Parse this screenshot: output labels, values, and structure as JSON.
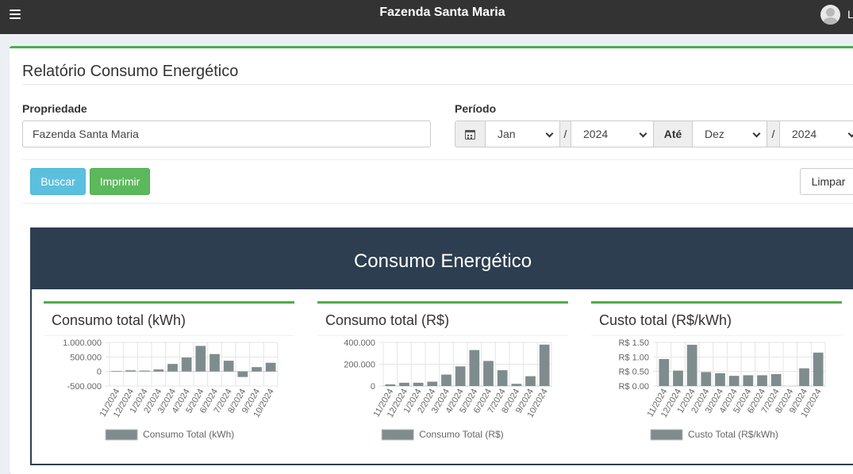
{
  "header": {
    "title": "Fazenda Santa Maria",
    "user_initial": "L"
  },
  "page": {
    "title": "Relatório Consumo Energético"
  },
  "form": {
    "propriedade_label": "Propriedade",
    "propriedade_value": "Fazenda Santa Maria",
    "periodo_label": "Período",
    "mes_inicio": "Jan",
    "ano_inicio": "2024",
    "separador": "/",
    "ate_label": "Até",
    "mes_fim": "Dez",
    "ano_fim": "2024"
  },
  "buttons": {
    "buscar": "Buscar",
    "imprimir": "Imprimir",
    "limpar": "Limpar"
  },
  "report": {
    "title": "Consumo Energético"
  },
  "colors": {
    "bar": "#7f8c8d",
    "accent_green": "#4cae4c",
    "report_header": "#2c3e50"
  },
  "chart_data": [
    {
      "type": "bar",
      "title": "Consumo total (kWh)",
      "categories": [
        "11/2024",
        "12/2024",
        "1/2024",
        "2/2024",
        "3/2024",
        "4/2024",
        "5/2024",
        "6/2024",
        "7/2024",
        "8/2024",
        "9/2024",
        "10/2024"
      ],
      "series": [
        {
          "name": "Consumo Total (kWh)",
          "values": [
            20000,
            40000,
            30000,
            70000,
            260000,
            480000,
            880000,
            600000,
            370000,
            -190000,
            150000,
            300000
          ]
        }
      ],
      "ylim": [
        -500000,
        1000000
      ],
      "yticks": [
        -500000,
        0,
        500000,
        1000000
      ],
      "ytick_labels": [
        "-500.000",
        "0",
        "500.000",
        "1.000.000"
      ],
      "grid": true,
      "legend": "bottom"
    },
    {
      "type": "bar",
      "title": "Consumo total (R$)",
      "categories": [
        "11/2024",
        "12/2024",
        "1/2024",
        "2/2024",
        "3/2024",
        "4/2024",
        "5/2024",
        "6/2024",
        "7/2024",
        "8/2024",
        "9/2024",
        "10/2024"
      ],
      "series": [
        {
          "name": "Consumo Total (R$)",
          "values": [
            15000,
            30000,
            30000,
            40000,
            105000,
            180000,
            330000,
            230000,
            145000,
            20000,
            90000,
            380000
          ]
        }
      ],
      "ylim": [
        0,
        400000
      ],
      "yticks": [
        0,
        200000,
        400000
      ],
      "ytick_labels": [
        "0",
        "200.000",
        "400.000"
      ],
      "grid": true,
      "legend": "bottom"
    },
    {
      "type": "bar",
      "title": "Custo total (R$/kWh)",
      "categories": [
        "11/2024",
        "12/2024",
        "1/2024",
        "2/2024",
        "3/2024",
        "4/2024",
        "5/2024",
        "6/2024",
        "7/2024",
        "8/2024",
        "9/2024",
        "10/2024"
      ],
      "series": [
        {
          "name": "Custo Total (R$/kWh)",
          "values": [
            0.93,
            0.53,
            1.42,
            0.48,
            0.44,
            0.35,
            0.37,
            0.37,
            0.41,
            0,
            0.61,
            1.15
          ]
        }
      ],
      "ylim": [
        0,
        1.5
      ],
      "yticks": [
        0,
        0.5,
        1.0,
        1.5
      ],
      "ytick_labels": [
        "R$ 0.00",
        "R$ 0.50",
        "R$ 1.00",
        "R$ 1.50"
      ],
      "grid": true,
      "legend": "bottom"
    }
  ]
}
